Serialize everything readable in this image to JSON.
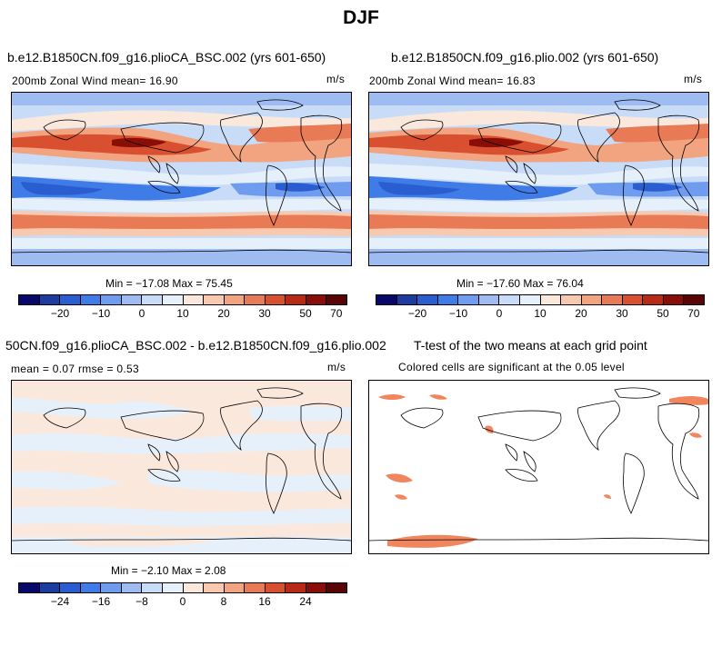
{
  "figure_title": "DJF",
  "panels": {
    "top_left": {
      "title": "b.e12.B1850CN.f09_g16.plioCA_BSC.002 (yrs 601-650)",
      "subtitle_left": "200mb Zonal Wind  mean=  16.90",
      "subtitle_right": "m/s",
      "stats": "Min = −17.08 Max =  75.45"
    },
    "top_right": {
      "title": "b.e12.B1850CN.f09_g16.plio.002 (yrs 601-650)",
      "subtitle_left": "200mb Zonal Wind  mean=  16.83",
      "subtitle_right": "m/s",
      "stats": "Min = −17.60 Max =  76.04"
    },
    "bottom_left": {
      "title": "50CN.f09_g16.plioCA_BSC.002 - b.e12.B1850CN.f09_g16.plio.002",
      "subtitle_left": "mean =    0.07     rmse =    0.53",
      "subtitle_right": "m/s",
      "stats": "Min = −2.10 Max =    2.08"
    },
    "bottom_right": {
      "title": "T-test of the two means at each grid point",
      "subtitle": "Colored cells are significant at the 0.05 level"
    }
  },
  "colorbars": {
    "wind": {
      "colors": [
        "#08086b",
        "#1c3ca0",
        "#2a5ed0",
        "#3f7ce8",
        "#6f9cee",
        "#9ebcf2",
        "#c9dcf7",
        "#e6f0fb",
        "#fbe8dc",
        "#f8c9ae",
        "#f1a47f",
        "#e87a55",
        "#d85030",
        "#b82a15",
        "#8a0e08",
        "#5a0505"
      ],
      "ticks": [
        "−20",
        "−10",
        "0",
        "10",
        "20",
        "30",
        "50",
        "70"
      ]
    },
    "diff": {
      "colors": [
        "#08086b",
        "#1c3ca0",
        "#2a5ed0",
        "#3f7ce8",
        "#6f9cee",
        "#9ebcf2",
        "#c9dcf7",
        "#e6f0fb",
        "#fbe8dc",
        "#f8c9ae",
        "#f1a47f",
        "#e87a55",
        "#d85030",
        "#b82a15",
        "#8a0e08",
        "#5a0505"
      ],
      "ticks": [
        "−24",
        "−16",
        "−8",
        "0",
        "8",
        "16",
        "24"
      ]
    }
  }
}
